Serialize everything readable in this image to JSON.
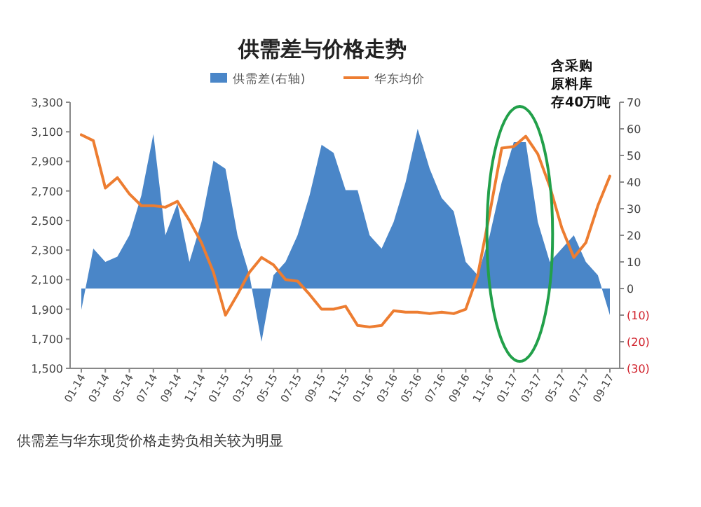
{
  "chart_data": {
    "type": "area",
    "title": "供需差与价格走势",
    "annotations": [
      "含采购原料库存40万吨",
      "供需差与华东现货价格走势负相关较为明显"
    ],
    "categories": [
      "01-14",
      null,
      "03-14",
      null,
      "05-14",
      null,
      "07-14",
      null,
      "09-14",
      null,
      "11-14",
      null,
      "01-15",
      null,
      "03-15",
      null,
      "05-15",
      null,
      "07-15",
      null,
      "09-15",
      null,
      "11-15",
      null,
      "01-16",
      null,
      "03-16",
      null,
      "05-16",
      null,
      "07-16",
      null,
      "09-16",
      null,
      "11-16",
      null,
      "01-17",
      null,
      "03-17",
      null,
      "05-17",
      null,
      "07-17",
      null,
      "09-17"
    ],
    "series": [
      {
        "name": "供需差(右轴)",
        "axis": "y2",
        "color": "#4a86c8",
        "values": [
          -8,
          15,
          10,
          12,
          20,
          35,
          58,
          20,
          32,
          10,
          25,
          48,
          45,
          20,
          5,
          -20,
          5,
          10,
          20,
          35,
          54,
          51,
          37,
          37,
          20,
          15,
          25,
          40,
          60,
          45,
          34,
          29,
          10,
          5,
          20,
          40,
          55,
          55,
          25,
          10,
          15,
          20,
          10,
          5,
          -10
        ]
      },
      {
        "name": "华东均价",
        "type": "line",
        "color": "#ed7d31",
        "values": [
          3080,
          3040,
          2720,
          2790,
          2680,
          2600,
          2600,
          2590,
          2630,
          2500,
          2350,
          2150,
          1860,
          2000,
          2150,
          2250,
          2200,
          2100,
          2090,
          2000,
          1900,
          1900,
          1920,
          1790,
          1780,
          1790,
          1890,
          1880,
          1880,
          1870,
          1880,
          1870,
          1900,
          2130,
          2550,
          2990,
          3000,
          3070,
          2950,
          2730,
          2450,
          2250,
          2350,
          2600,
          2800
        ]
      }
    ],
    "ylim": [
      1500,
      3300
    ],
    "yticks": [
      {
        "value": 1500,
        "label": "1,500"
      },
      {
        "value": 1700,
        "label": "1,700"
      },
      {
        "value": 1900,
        "label": "1,900"
      },
      {
        "value": 2100,
        "label": "2,100"
      },
      {
        "value": 2300,
        "label": "2,300"
      },
      {
        "value": 2500,
        "label": "2,500"
      },
      {
        "value": 2700,
        "label": "2,700"
      },
      {
        "value": 2900,
        "label": "2,900"
      },
      {
        "value": 3100,
        "label": "3,100"
      },
      {
        "value": 3300,
        "label": "3,300"
      }
    ],
    "y2lim": [
      -30,
      70
    ],
    "y2ticks": [
      {
        "value": -30,
        "label": "(30)"
      },
      {
        "value": -20,
        "label": "(20)"
      },
      {
        "value": -10,
        "label": "(10)"
      },
      0,
      10,
      20,
      30,
      40,
      50,
      60,
      70
    ],
    "legend": "top",
    "grid": false,
    "marker": "none",
    "line_style": "solid"
  }
}
